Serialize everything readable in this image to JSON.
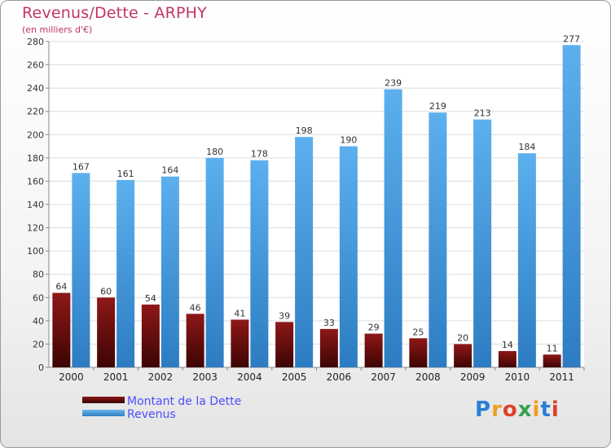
{
  "chart_data": {
    "type": "bar",
    "title": "Revenus/Dette - ARPHY",
    "subtitle": "(en milliers d'€)",
    "categories": [
      "2000",
      "2001",
      "2002",
      "2003",
      "2004",
      "2005",
      "2006",
      "2007",
      "2008",
      "2009",
      "2010",
      "2011"
    ],
    "series": [
      {
        "name": "Montant de la Dette",
        "color": "#6b0a0a",
        "values": [
          64,
          60,
          54,
          46,
          41,
          39,
          33,
          29,
          25,
          20,
          14,
          11
        ]
      },
      {
        "name": "Revenus",
        "color": "#4fa3e4",
        "values": [
          167,
          161,
          164,
          180,
          178,
          198,
          190,
          239,
          219,
          213,
          184,
          277
        ]
      }
    ],
    "ylim": [
      0,
      280
    ],
    "yticks": [
      0,
      20,
      40,
      60,
      80,
      100,
      120,
      140,
      160,
      180,
      200,
      220,
      240,
      260,
      280
    ],
    "grid": true,
    "legend_position": "bottom-left"
  },
  "brand": {
    "letters": [
      "P",
      "r",
      "o",
      "x",
      "i",
      "t",
      "i"
    ],
    "colors": [
      "#2a7fd4",
      "#f0a020",
      "#e0402a",
      "#3aa04a",
      "#f0a020",
      "#2a7fd4",
      "#e0402a"
    ]
  }
}
